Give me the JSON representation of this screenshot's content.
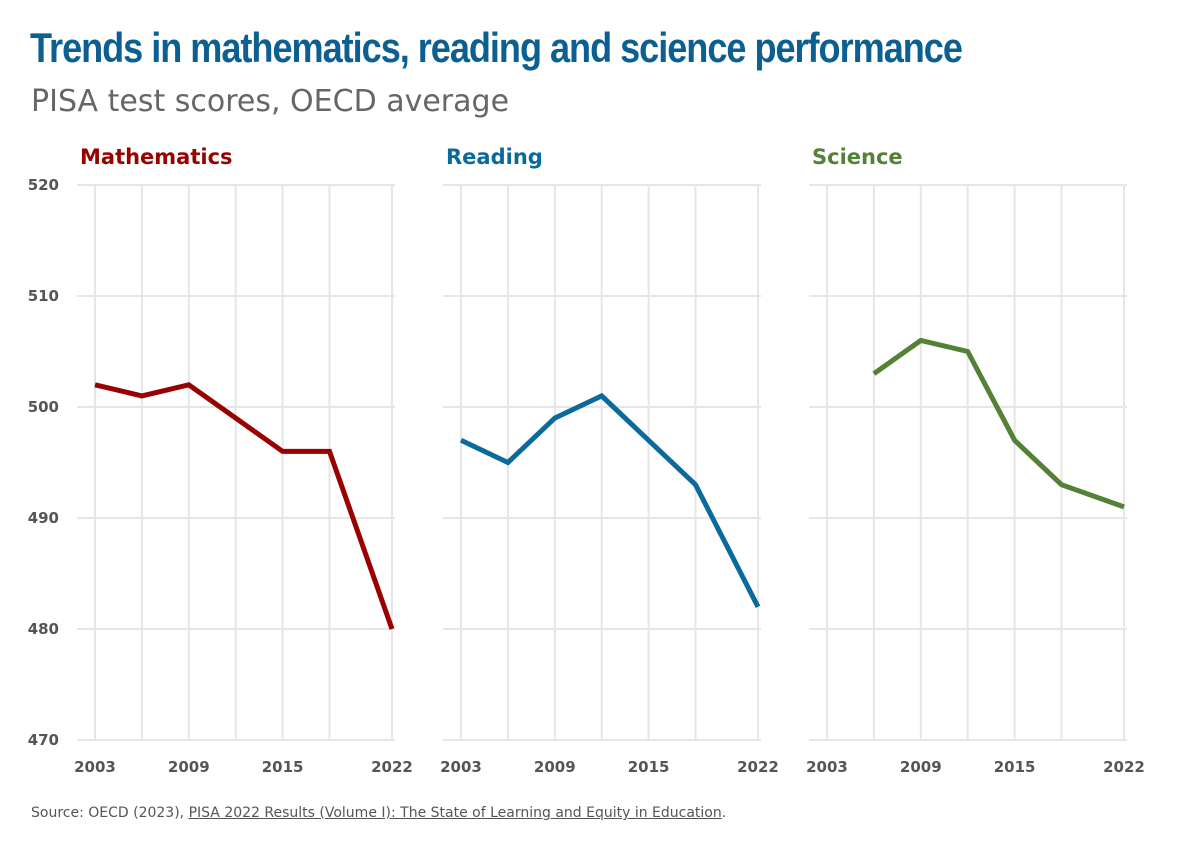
{
  "title": "Trends in mathematics, reading and science performance",
  "subtitle": "PISA test scores, OECD average",
  "colors": {
    "title": "#0B5F91",
    "subtitle": "#666666",
    "axis_text": "#555555",
    "grid": "#E6E6E6",
    "source_text": "#555555"
  },
  "chart_data": {
    "type": "line",
    "ylim": [
      470,
      520
    ],
    "yticks": [
      470,
      480,
      490,
      500,
      510,
      520
    ],
    "xlim": [
      2003,
      2022
    ],
    "x_gridlines": [
      2003,
      2006,
      2009,
      2012,
      2015,
      2018,
      2022
    ],
    "xtick_labels": [
      2003,
      2009,
      2015,
      2022
    ],
    "panels": [
      {
        "name": "Mathematics",
        "color": "#990000",
        "x": [
          2003,
          2006,
          2009,
          2012,
          2015,
          2018,
          2022
        ],
        "values": [
          502,
          501,
          502,
          499,
          496,
          496,
          480
        ]
      },
      {
        "name": "Reading",
        "color": "#0B6A9C",
        "x": [
          2003,
          2006,
          2009,
          2012,
          2015,
          2018,
          2022
        ],
        "values": [
          497,
          495,
          499,
          501,
          497,
          493,
          482
        ]
      },
      {
        "name": "Science",
        "color": "#538135",
        "x": [
          2006,
          2009,
          2012,
          2015,
          2018,
          2022
        ],
        "values": [
          503,
          506,
          505,
          497,
          493,
          491
        ]
      }
    ]
  },
  "source": {
    "prefix": "Source: OECD (2023), ",
    "link": "PISA 2022 Results (Volume I): The State of Learning and Equity in Education",
    "suffix": "."
  }
}
